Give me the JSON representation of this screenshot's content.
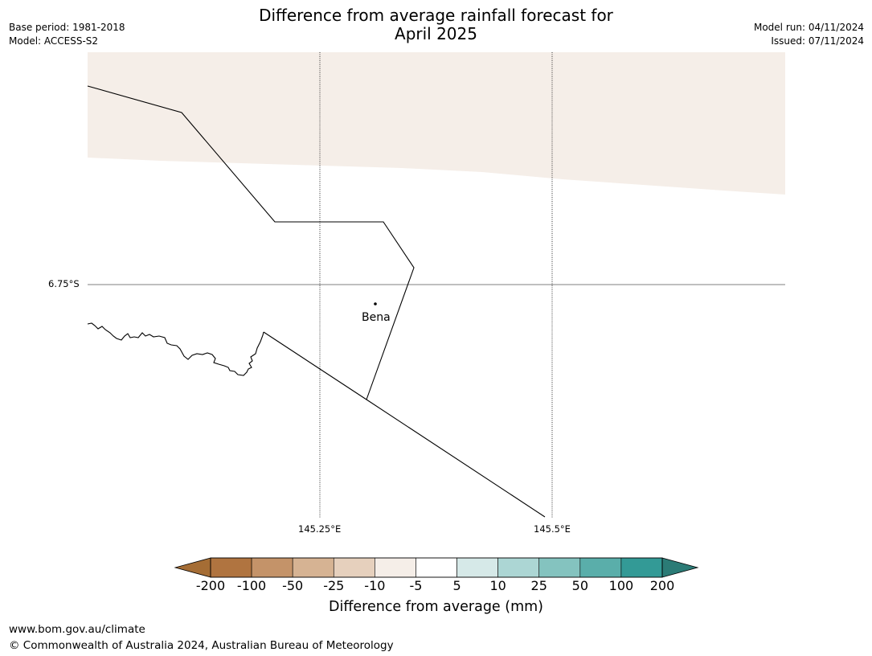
{
  "header": {
    "title_line1": "Difference from average rainfall forecast for",
    "title_line2": "April 2025",
    "base_period": "Base period: 1981-2018",
    "model": "Model: ACCESS-S2",
    "model_run": "Model run: 04/11/2024",
    "issued": "Issued: 07/11/2024"
  },
  "map": {
    "lat_label": "6.75°S",
    "lon_labels": [
      "145.25°E",
      "145.5°E"
    ],
    "place": {
      "name": "Bena"
    },
    "fill_color": "#f5eee8",
    "fill_category": "-10 to -5"
  },
  "colorbar": {
    "label": "Difference from average (mm)",
    "ticks": [
      "-200",
      "-100",
      "-50",
      "-25",
      "-10",
      "-5",
      "5",
      "10",
      "25",
      "50",
      "100",
      "200"
    ],
    "colors": [
      "#a56d35",
      "#b07440",
      "#c49369",
      "#d6b393",
      "#e6d0bd",
      "#f5eee8",
      "#ffffff",
      "#d6e9e8",
      "#acd6d4",
      "#84c3bf",
      "#5aaeaa",
      "#339a96",
      "#2b7b76"
    ]
  },
  "footer": {
    "url": "www.bom.gov.au/climate",
    "copyright": "© Commonwealth of Australia 2024, Australian Bureau of Meteorology"
  }
}
